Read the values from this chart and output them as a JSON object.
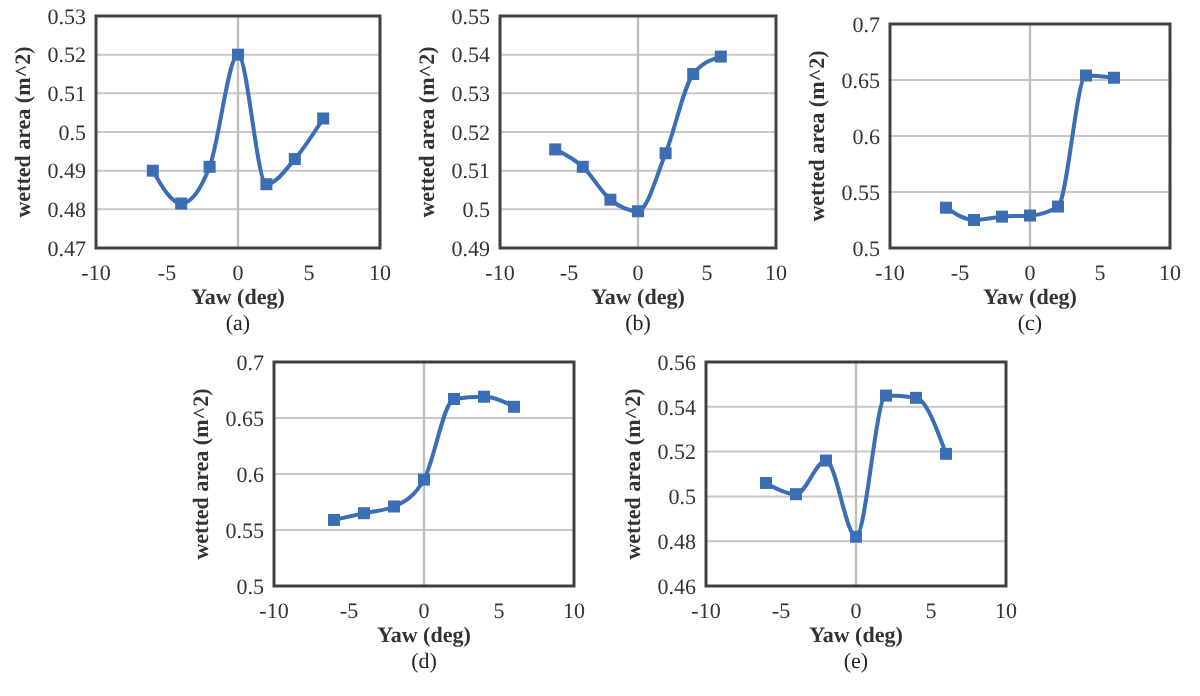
{
  "chart_data": [
    {
      "type": "line",
      "xlabel": "Yaw (deg)",
      "ylabel": "wetted area (m^2)",
      "annotations": [
        "(a)"
      ],
      "x": [
        -6,
        -4,
        -2,
        0,
        2,
        4,
        6
      ],
      "series": [
        {
          "color": "#3b6eb4",
          "values": [
            0.49,
            0.4815,
            0.491,
            0.52,
            0.4865,
            0.493,
            0.5035
          ]
        }
      ],
      "xlim": [
        -10,
        10
      ],
      "xticks": [
        -10,
        -5,
        0,
        5,
        10
      ],
      "ylim": [
        0.47,
        0.53
      ],
      "yticks": [
        0.47,
        0.48,
        0.49,
        0.5,
        0.51,
        0.52,
        0.53
      ],
      "grid": "y",
      "marker": "square",
      "line_style": "solid",
      "ref_lines": [
        {
          "axis": "x",
          "value": 0,
          "color": "#bfbfbf"
        }
      ]
    },
    {
      "type": "line",
      "xlabel": "Yaw (deg)",
      "ylabel": "wetted area (m^2)",
      "annotations": [
        "(b)"
      ],
      "x": [
        -6,
        -4,
        -2,
        0,
        2,
        4,
        6
      ],
      "series": [
        {
          "color": "#3b6eb4",
          "values": [
            0.5155,
            0.511,
            0.5025,
            0.4995,
            0.5145,
            0.535,
            0.5395
          ]
        }
      ],
      "xlim": [
        -10,
        10
      ],
      "xticks": [
        -10,
        -5,
        0,
        5,
        10
      ],
      "ylim": [
        0.49,
        0.55
      ],
      "yticks": [
        0.49,
        0.5,
        0.51,
        0.52,
        0.53,
        0.54,
        0.55
      ],
      "grid": "y",
      "marker": "square",
      "line_style": "solid",
      "ref_lines": [
        {
          "axis": "x",
          "value": 0,
          "color": "#bfbfbf"
        }
      ]
    },
    {
      "type": "line",
      "xlabel": "Yaw (deg)",
      "ylabel": "wetted area (m^2)",
      "annotations": [
        "(c)"
      ],
      "x": [
        -6,
        -4,
        -2,
        0,
        2,
        4,
        6
      ],
      "series": [
        {
          "color": "#3b6eb4",
          "values": [
            0.536,
            0.525,
            0.528,
            0.529,
            0.537,
            0.654,
            0.652
          ]
        }
      ],
      "xlim": [
        -10,
        10
      ],
      "xticks": [
        -10,
        -5,
        0,
        5,
        10
      ],
      "ylim": [
        0.5,
        0.7
      ],
      "yticks": [
        0.5,
        0.55,
        0.6,
        0.65,
        0.7
      ],
      "grid": "y",
      "marker": "square",
      "line_style": "solid",
      "ref_lines": [
        {
          "axis": "x",
          "value": 0,
          "color": "#bfbfbf"
        }
      ]
    },
    {
      "type": "line",
      "xlabel": "Yaw (deg)",
      "ylabel": "wetted area (m^2)",
      "annotations": [
        "(d)"
      ],
      "x": [
        -6,
        -4,
        -2,
        0,
        2,
        4,
        6
      ],
      "series": [
        {
          "color": "#3b6eb4",
          "values": [
            0.559,
            0.565,
            0.571,
            0.595,
            0.667,
            0.669,
            0.66
          ]
        }
      ],
      "xlim": [
        -10,
        10
      ],
      "xticks": [
        -10,
        -5,
        0,
        5,
        10
      ],
      "ylim": [
        0.5,
        0.7
      ],
      "yticks": [
        0.5,
        0.55,
        0.6,
        0.65,
        0.7
      ],
      "grid": "y",
      "marker": "square",
      "line_style": "solid",
      "ref_lines": [
        {
          "axis": "x",
          "value": 0,
          "color": "#bfbfbf"
        }
      ]
    },
    {
      "type": "line",
      "xlabel": "Yaw (deg)",
      "ylabel": "wetted area (m^2)",
      "annotations": [
        "(e)"
      ],
      "x": [
        -6,
        -4,
        -2,
        0,
        2,
        4,
        6
      ],
      "series": [
        {
          "color": "#3b6eb4",
          "values": [
            0.506,
            0.501,
            0.516,
            0.482,
            0.545,
            0.544,
            0.519
          ]
        }
      ],
      "xlim": [
        -10,
        10
      ],
      "xticks": [
        -10,
        -5,
        0,
        5,
        10
      ],
      "ylim": [
        0.46,
        0.56
      ],
      "yticks": [
        0.46,
        0.48,
        0.5,
        0.52,
        0.54,
        0.56
      ],
      "grid": "y",
      "marker": "square",
      "line_style": "solid",
      "ref_lines": [
        {
          "axis": "x",
          "value": 0,
          "color": "#bfbfbf"
        }
      ]
    }
  ]
}
